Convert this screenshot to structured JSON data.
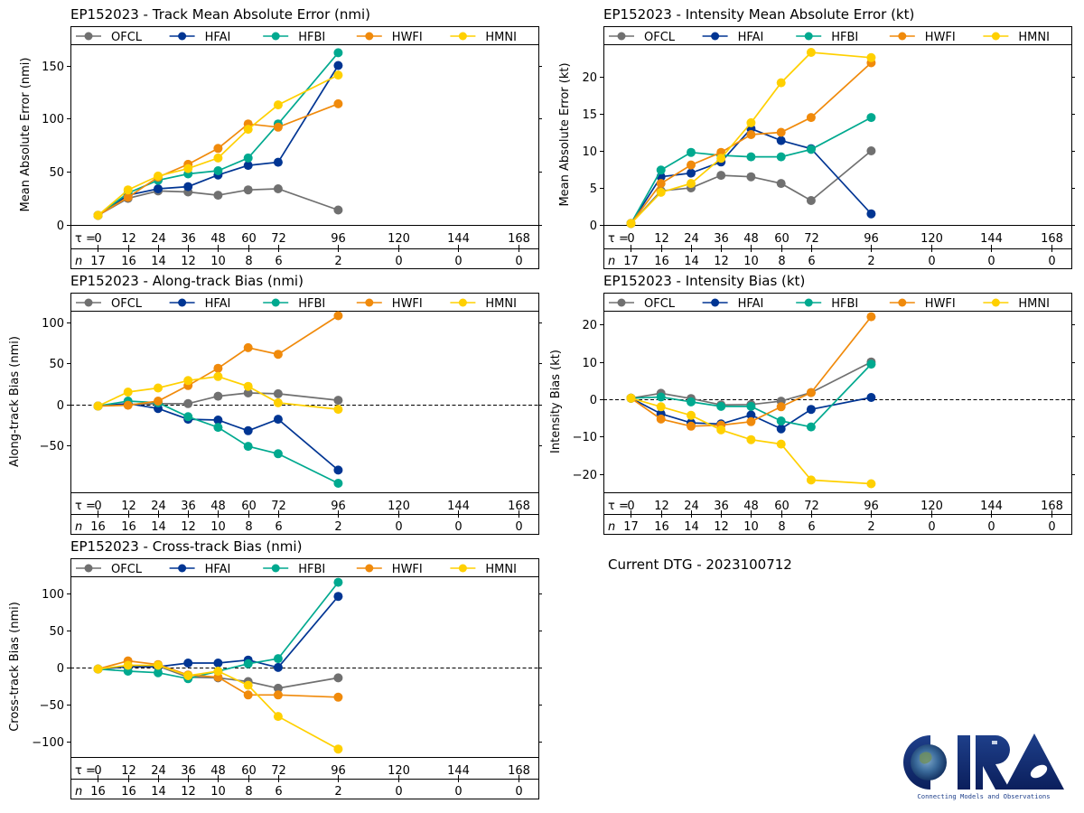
{
  "storm_id": "EP152023",
  "current_dtg_text": "Current DTG - 2023100712",
  "logo": {
    "name": "CIRA",
    "tagline": "Connecting Models and Observations"
  },
  "series_styles": [
    {
      "name": "OFCL",
      "color": "#707070"
    },
    {
      "name": "HFAI",
      "color": "#003593"
    },
    {
      "name": "HFBI",
      "color": "#00A98F"
    },
    {
      "name": "HWFI",
      "color": "#F08A0B"
    },
    {
      "name": "HMNI",
      "color": "#FFD000"
    }
  ],
  "tau_label": "τ = ",
  "n_label": "n",
  "chart_data": [
    {
      "id": "track-mae",
      "type": "line",
      "title": "EP152023 - Track Mean Absolute Error (nmi)",
      "xlabel": "",
      "ylabel": "Mean Absolute Error (nmi)",
      "x_ticks": [
        0,
        12,
        24,
        36,
        48,
        60,
        72,
        96,
        120,
        144,
        168
      ],
      "x": [
        0,
        12,
        24,
        36,
        48,
        60,
        72,
        96
      ],
      "xlim": [
        -11,
        176
      ],
      "ylim": [
        0,
        170
      ],
      "y_ticks": [
        0,
        50,
        100,
        150
      ],
      "zero_line": false,
      "n_counts": [
        17,
        16,
        14,
        12,
        10,
        8,
        6,
        2,
        0,
        0,
        0
      ],
      "legend_position": "top",
      "series": [
        {
          "name": "OFCL",
          "values": [
            9,
            25,
            32,
            31,
            28,
            33,
            34,
            14
          ]
        },
        {
          "name": "HFAI",
          "values": [
            9,
            28,
            34,
            36,
            47,
            56,
            59,
            150
          ]
        },
        {
          "name": "HFBI",
          "values": [
            9,
            30,
            42,
            48,
            51,
            63,
            95,
            162
          ]
        },
        {
          "name": "HWFI",
          "values": [
            9,
            26,
            45,
            57,
            72,
            95,
            92,
            114
          ]
        },
        {
          "name": "HMNI",
          "values": [
            9,
            33,
            46,
            53,
            63,
            90,
            113,
            141
          ]
        }
      ]
    },
    {
      "id": "intensity-mae",
      "type": "line",
      "title": "EP152023 - Intensity Mean Absolute Error (kt)",
      "xlabel": "",
      "ylabel": "Mean Absolute Error (kt)",
      "x_ticks": [
        0,
        12,
        24,
        36,
        48,
        60,
        72,
        96,
        120,
        144,
        168
      ],
      "x": [
        0,
        12,
        24,
        36,
        48,
        60,
        72,
        96
      ],
      "xlim": [
        -11,
        176
      ],
      "ylim": [
        0,
        24.4
      ],
      "y_ticks": [
        0,
        5,
        10,
        15,
        20
      ],
      "zero_line": false,
      "n_counts": [
        17,
        16,
        14,
        12,
        10,
        8,
        6,
        2,
        0,
        0,
        0
      ],
      "legend_position": "top",
      "series": [
        {
          "name": "OFCL",
          "values": [
            0.2,
            4.6,
            5.0,
            6.7,
            6.5,
            5.6,
            3.3,
            10.0
          ]
        },
        {
          "name": "HFAI",
          "values": [
            0.2,
            6.5,
            7.0,
            8.5,
            13.0,
            11.4,
            10.3,
            1.5
          ]
        },
        {
          "name": "HFBI",
          "values": [
            0.2,
            7.4,
            9.8,
            9.4,
            9.2,
            9.2,
            10.2,
            14.5
          ]
        },
        {
          "name": "HWFI",
          "values": [
            0.2,
            5.6,
            8.1,
            9.8,
            12.2,
            12.5,
            14.5,
            21.9
          ]
        },
        {
          "name": "HMNI",
          "values": [
            0.2,
            4.4,
            5.6,
            9.0,
            13.8,
            19.2,
            23.3,
            22.6
          ]
        }
      ]
    },
    {
      "id": "along-track-bias",
      "type": "line",
      "title": "EP152023 - Along-track Bias (nmi)",
      "xlabel": "",
      "ylabel": "Along-track Bias (nmi)",
      "x_ticks": [
        0,
        12,
        24,
        36,
        48,
        60,
        72,
        96,
        120,
        144,
        168
      ],
      "x": [
        0,
        12,
        24,
        36,
        48,
        60,
        72,
        96
      ],
      "xlim": [
        -11,
        176
      ],
      "ylim": [
        -107,
        114
      ],
      "y_ticks": [
        -50,
        0,
        50,
        100
      ],
      "zero_line": true,
      "n_counts": [
        16,
        16,
        14,
        12,
        10,
        8,
        6,
        2,
        0,
        0,
        0
      ],
      "legend_position": "top",
      "series": [
        {
          "name": "OFCL",
          "values": [
            -2,
            0,
            1,
            1,
            10,
            14,
            13,
            5
          ]
        },
        {
          "name": "HFAI",
          "values": [
            -2,
            1,
            -5,
            -18,
            -19,
            -32,
            -18,
            -80
          ]
        },
        {
          "name": "HFBI",
          "values": [
            -2,
            4,
            2,
            -15,
            -28,
            -51,
            -60,
            -96
          ]
        },
        {
          "name": "HWFI",
          "values": [
            -2,
            -1,
            4,
            23,
            44,
            69,
            61,
            108
          ]
        },
        {
          "name": "HMNI",
          "values": [
            -2,
            15,
            20,
            29,
            34,
            22,
            2,
            -6
          ]
        }
      ]
    },
    {
      "id": "intensity-bias",
      "type": "line",
      "title": "EP152023 - Intensity Bias (kt)",
      "xlabel": "",
      "ylabel": "Intensity Bias (kt)",
      "x_ticks": [
        0,
        12,
        24,
        36,
        48,
        60,
        72,
        96,
        120,
        144,
        168
      ],
      "x": [
        0,
        12,
        24,
        36,
        48,
        60,
        72,
        96
      ],
      "xlim": [
        -11,
        176
      ],
      "ylim": [
        -24.9,
        23.7
      ],
      "y_ticks": [
        -20,
        -10,
        0,
        10,
        20
      ],
      "zero_line": true,
      "n_counts": [
        17,
        16,
        14,
        12,
        10,
        8,
        6,
        2,
        0,
        0,
        0
      ],
      "legend_position": "top",
      "series": [
        {
          "name": "OFCL",
          "values": [
            0.3,
            1.6,
            0.2,
            -1.5,
            -1.4,
            -0.5,
            1.8,
            10.0
          ]
        },
        {
          "name": "HFAI",
          "values": [
            0.3,
            -3.9,
            -6.3,
            -6.6,
            -4.2,
            -7.9,
            -2.7,
            0.5
          ]
        },
        {
          "name": "HFBI",
          "values": [
            0.3,
            0.6,
            -0.7,
            -1.9,
            -1.9,
            -5.8,
            -7.4,
            9.4
          ]
        },
        {
          "name": "HWFI",
          "values": [
            0.3,
            -5.3,
            -7.2,
            -6.9,
            -6.0,
            -2.0,
            1.8,
            22.1
          ]
        },
        {
          "name": "HMNI",
          "values": [
            0.3,
            -2.0,
            -4.3,
            -8.2,
            -10.8,
            -12.0,
            -21.6,
            -22.6
          ]
        }
      ]
    },
    {
      "id": "cross-track-bias",
      "type": "line",
      "title": "EP152023 - Cross-track Bias (nmi)",
      "xlabel": "",
      "ylabel": "Cross-track Bias (nmi)",
      "x_ticks": [
        0,
        12,
        24,
        36,
        48,
        60,
        72,
        96,
        120,
        144,
        168
      ],
      "x": [
        0,
        12,
        24,
        36,
        48,
        60,
        72,
        96
      ],
      "xlim": [
        -11,
        176
      ],
      "ylim": [
        -120.7,
        123
      ],
      "y_ticks": [
        -100,
        -50,
        0,
        50,
        100
      ],
      "zero_line": true,
      "n_counts": [
        16,
        16,
        14,
        12,
        10,
        8,
        6,
        2,
        0,
        0,
        0
      ],
      "legend_position": "top",
      "series": [
        {
          "name": "OFCL",
          "values": [
            -2,
            1,
            2,
            -13,
            -14,
            -19,
            -28,
            -14
          ]
        },
        {
          "name": "HFAI",
          "values": [
            -2,
            1,
            1,
            6,
            6,
            10,
            0,
            96
          ]
        },
        {
          "name": "HFBI",
          "values": [
            -2,
            -5,
            -7,
            -15,
            -5,
            5,
            12,
            115
          ]
        },
        {
          "name": "HWFI",
          "values": [
            -2,
            9,
            4,
            -10,
            -13,
            -37,
            -37,
            -40
          ]
        },
        {
          "name": "HMNI",
          "values": [
            -2,
            3,
            3,
            -11,
            -5,
            -24,
            -66,
            -110
          ]
        }
      ]
    }
  ]
}
